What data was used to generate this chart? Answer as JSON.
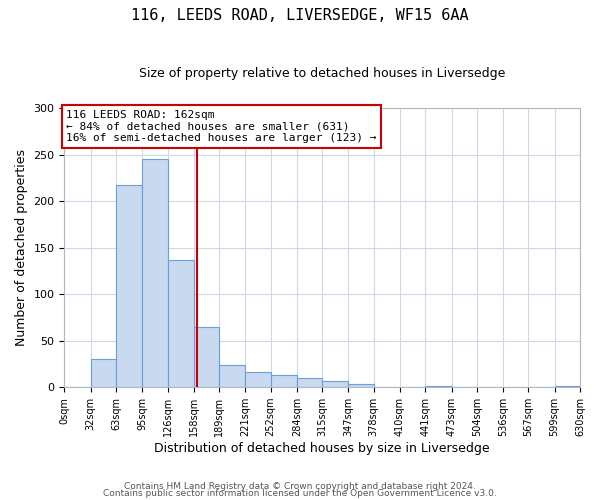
{
  "title1": "116, LEEDS ROAD, LIVERSEDGE, WF15 6AA",
  "title2": "Size of property relative to detached houses in Liversedge",
  "xlabel": "Distribution of detached houses by size in Liversedge",
  "ylabel": "Number of detached properties",
  "bin_edges": [
    0,
    32,
    63,
    95,
    126,
    158,
    189,
    221,
    252,
    284,
    315,
    347,
    378,
    410,
    441,
    473,
    504,
    536,
    567,
    599,
    630
  ],
  "bin_labels": [
    "0sqm",
    "32sqm",
    "63sqm",
    "95sqm",
    "126sqm",
    "158sqm",
    "189sqm",
    "221sqm",
    "252sqm",
    "284sqm",
    "315sqm",
    "347sqm",
    "378sqm",
    "410sqm",
    "441sqm",
    "473sqm",
    "504sqm",
    "536sqm",
    "567sqm",
    "599sqm",
    "630sqm"
  ],
  "counts": [
    0,
    30,
    217,
    245,
    137,
    65,
    24,
    16,
    13,
    10,
    7,
    3,
    0,
    0,
    1,
    0,
    0,
    0,
    0,
    1
  ],
  "ylim": [
    0,
    300
  ],
  "yticks": [
    0,
    50,
    100,
    150,
    200,
    250,
    300
  ],
  "property_line_x": 162,
  "bar_fill_color": "#c9d9f0",
  "bar_edge_color": "#6a9fd8",
  "grid_color": "#d0d8e8",
  "vline_color": "#cc0000",
  "annotation_line1": "116 LEEDS ROAD: 162sqm",
  "annotation_line2": "← 84% of detached houses are smaller (631)",
  "annotation_line3": "16% of semi-detached houses are larger (123) →",
  "annotation_box_edge": "#cc0000",
  "footnote1": "Contains HM Land Registry data © Crown copyright and database right 2024.",
  "footnote2": "Contains public sector information licensed under the Open Government Licence v3.0.",
  "background_color": "#ffffff",
  "plot_bg_color": "#ffffff"
}
